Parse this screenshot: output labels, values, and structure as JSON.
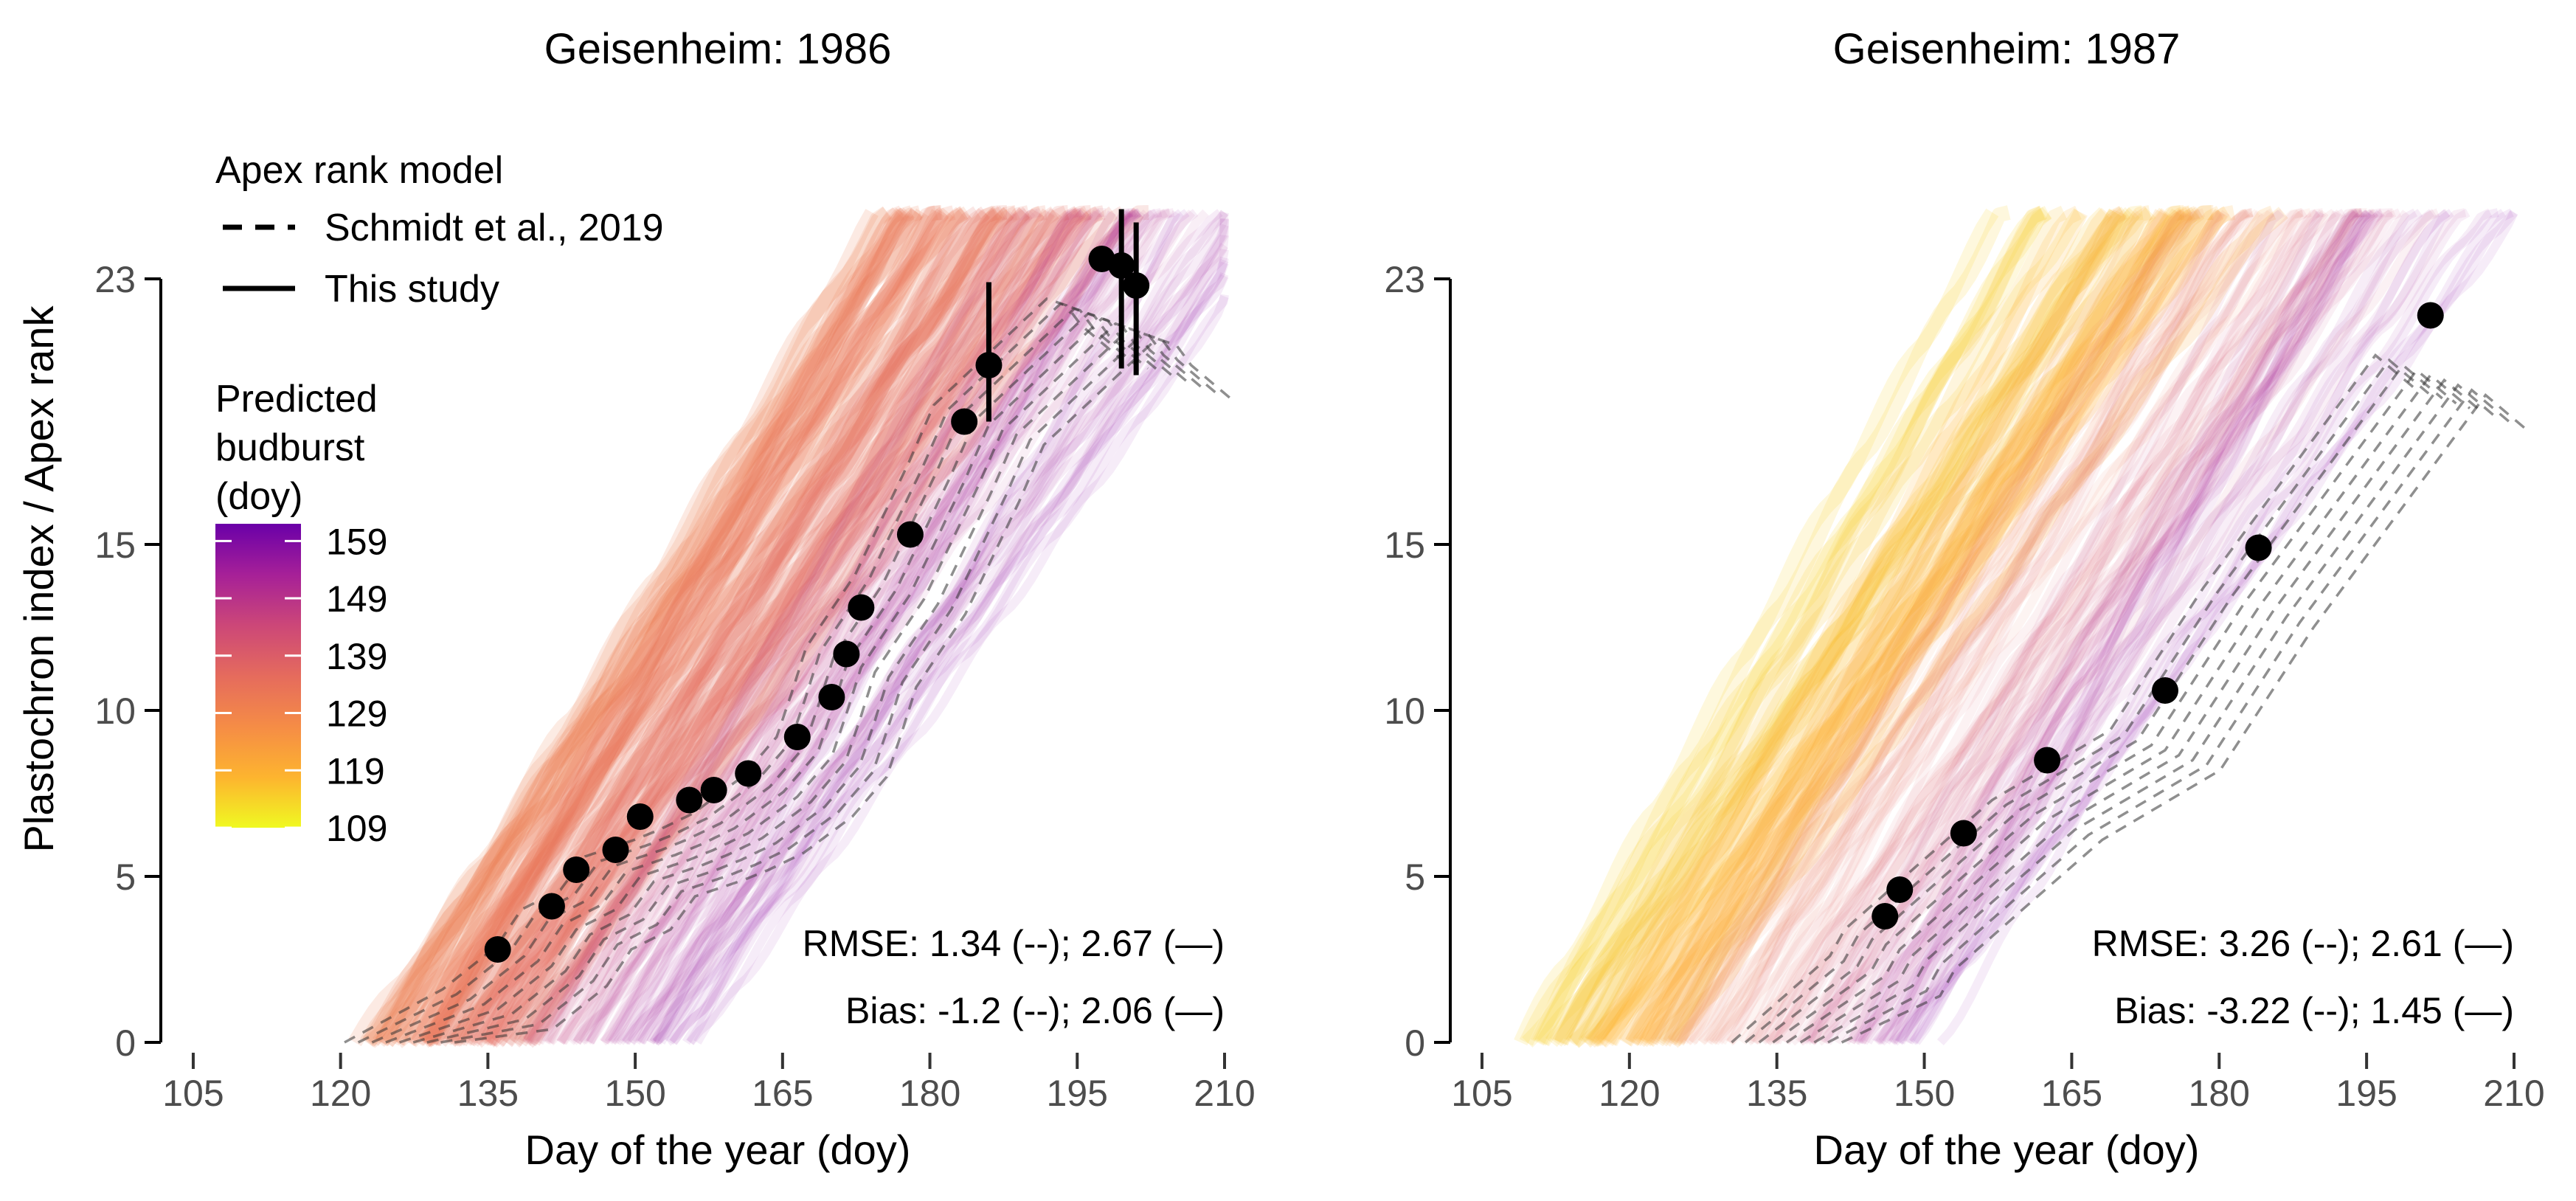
{
  "ylabel": "Plastochron index / Apex rank",
  "legend": {
    "model_title": "Apex rank model",
    "model_entries": [
      {
        "label": "Schmidt et al., 2019",
        "style": "dashed"
      },
      {
        "label": "This study",
        "style": "solid"
      }
    ],
    "color_title_lines": [
      "Predicted",
      "budburst",
      "(doy)"
    ],
    "color_ticks": [
      "159",
      "149",
      "139",
      "129",
      "119",
      "109"
    ],
    "color_range": [
      109,
      162
    ],
    "colors": [
      "#f0f921",
      "#fdb42f",
      "#f58c46",
      "#e56b5d",
      "#cc4778",
      "#a62098",
      "#7e03a8"
    ]
  },
  "chart_data": [
    {
      "type": "line",
      "title": "Geisenheim: 1986",
      "xlabel": "Day of the year (doy)",
      "ylabel": "Plastochron index / Apex rank",
      "xlim": [
        102,
        210
      ],
      "ylim": [
        0,
        23
      ],
      "xticks": [
        "105",
        "120",
        "135",
        "150",
        "165",
        "180",
        "195",
        "210"
      ],
      "yticks": [
        "0",
        "5",
        "10",
        "15",
        "23"
      ],
      "ensemble": {
        "start_doy_range": [
          122,
          155
        ],
        "budburst_doy_range": [
          125,
          160
        ],
        "dominant_budburst_doy": 133
      },
      "observations": [
        {
          "doy": 136,
          "rank": 2.8
        },
        {
          "doy": 141.5,
          "rank": 4.1
        },
        {
          "doy": 144,
          "rank": 5.2
        },
        {
          "doy": 148,
          "rank": 5.8
        },
        {
          "doy": 150.5,
          "rank": 6.8
        },
        {
          "doy": 155.5,
          "rank": 7.3
        },
        {
          "doy": 158,
          "rank": 7.6
        },
        {
          "doy": 161.5,
          "rank": 8.1
        },
        {
          "doy": 166.5,
          "rank": 9.2
        },
        {
          "doy": 170,
          "rank": 10.4
        },
        {
          "doy": 171.5,
          "rank": 11.7
        },
        {
          "doy": 173,
          "rank": 13.1
        },
        {
          "doy": 178,
          "rank": 15.3
        },
        {
          "doy": 183.5,
          "rank": 18.7
        },
        {
          "doy": 186,
          "rank": 20.4,
          "err": [
            18.7,
            22.9
          ]
        },
        {
          "doy": 197.5,
          "rank": 23.6
        },
        {
          "doy": 199.5,
          "rank": 23.4,
          "err": [
            20.3,
            25.1
          ]
        },
        {
          "doy": 201,
          "rank": 22.8,
          "err": [
            20.1,
            24.7
          ]
        }
      ],
      "rmse_text": "RMSE: 1.34 (--); 2.67 (—)",
      "bias_text": "Bias: -1.2 (--); 2.06 (—)"
    },
    {
      "type": "line",
      "title": "Geisenheim: 1987",
      "xlabel": "Day of the year (doy)",
      "ylabel": "Plastochron index / Apex rank",
      "xlim": [
        102,
        210
      ],
      "ylim": [
        0,
        23
      ],
      "xticks": [
        "105",
        "120",
        "135",
        "150",
        "165",
        "180",
        "195",
        "210"
      ],
      "yticks": [
        "0",
        "5",
        "10",
        "15",
        "23"
      ],
      "ensemble": {
        "start_doy_range": [
          110,
          150
        ],
        "budburst_doy_range": [
          109,
          160
        ],
        "dominant_budburst_doy": 117
      },
      "observations": [
        {
          "doy": 146,
          "rank": 3.8
        },
        {
          "doy": 147.5,
          "rank": 4.6
        },
        {
          "doy": 154,
          "rank": 6.3
        },
        {
          "doy": 162.5,
          "rank": 8.5
        },
        {
          "doy": 174.5,
          "rank": 10.6
        },
        {
          "doy": 184,
          "rank": 14.9
        },
        {
          "doy": 201.5,
          "rank": 21.9
        }
      ],
      "rmse_text": "RMSE: 3.26 (--); 2.61 (—)",
      "bias_text": "Bias: -3.22 (--); 1.45 (—)"
    }
  ]
}
